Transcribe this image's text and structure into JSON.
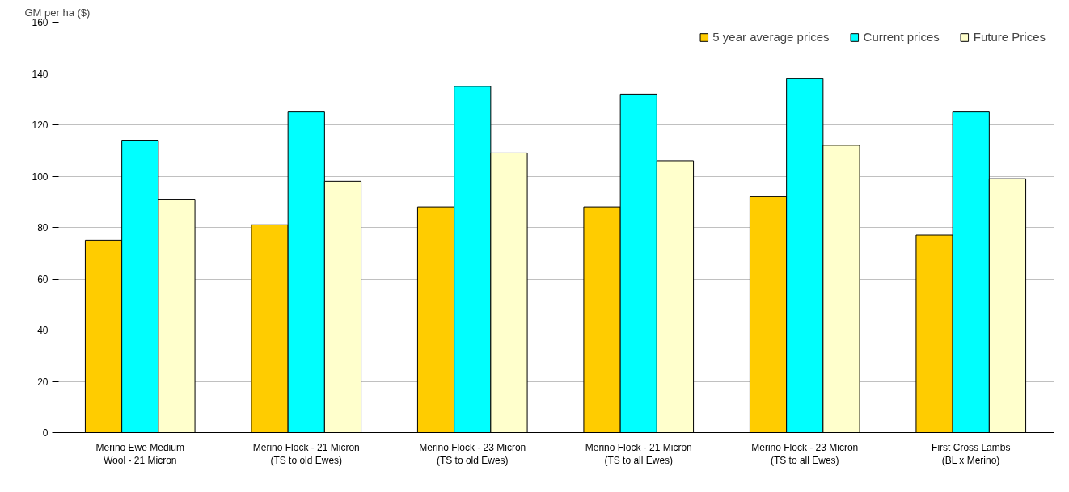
{
  "chart_data": {
    "type": "bar",
    "ylabel": "GM per ha ($)",
    "categories": [
      "Merino Ewe Medium\nWool - 21 Micron",
      "Merino Flock - 21 Micron\n(TS to old Ewes)",
      "Merino Flock - 23 Micron\n(TS to old Ewes)",
      "Merino Flock - 21 Micron\n(TS to all Ewes)",
      "Merino Flock - 23 Micron\n(TS to all Ewes)",
      "First Cross Lambs\n(BL x Merino)"
    ],
    "series": [
      {
        "name": "5 year average prices",
        "color": "#ffcc00",
        "values": [
          75,
          81,
          88,
          88,
          92,
          77
        ]
      },
      {
        "name": "Current prices",
        "color": "#00ffff",
        "values": [
          114,
          125,
          135,
          132,
          138,
          125
        ]
      },
      {
        "name": "Future Prices",
        "color": "#ffffcc",
        "values": [
          91,
          98,
          109,
          106,
          112,
          99
        ]
      }
    ],
    "ylim": [
      0,
      160
    ],
    "yticks": [
      0,
      20,
      40,
      60,
      80,
      100,
      120,
      140,
      160
    ],
    "grid": "y",
    "legend": "top right"
  }
}
